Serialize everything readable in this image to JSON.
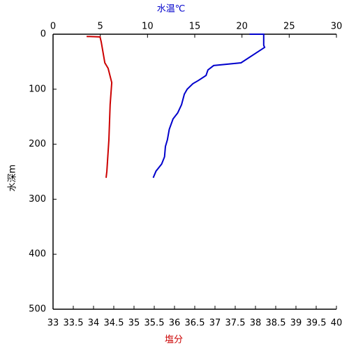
{
  "chart_data": {
    "type": "line",
    "x_label": "塩分",
    "x2_label": "水温℃",
    "y_label": "水深m",
    "xlim": [
      33,
      40
    ],
    "xticks": [
      33,
      33.5,
      34,
      34.5,
      35,
      35.5,
      36,
      36.5,
      37,
      37.5,
      38,
      38.5,
      39,
      39.5,
      40
    ],
    "x2lim": [
      0,
      30
    ],
    "x2ticks": [
      0,
      5,
      10,
      15,
      20,
      25,
      30
    ],
    "ylim": [
      0,
      500
    ],
    "yticks": [
      0,
      100,
      200,
      300,
      400,
      500
    ],
    "y_inverted": true,
    "x_label_color": "#cc0000",
    "x2_label_color": "#0000cc",
    "series": [
      {
        "axis": "x2",
        "color": "#0000cc",
        "x": [
          20.8,
          22.3,
          22.3,
          22.4,
          19.9,
          17.0,
          16.4,
          16.2,
          15.4,
          14.8,
          14.2,
          13.9,
          13.6,
          13.2,
          12.7,
          12.3,
          12.1,
          11.9,
          11.8,
          11.5,
          10.9,
          10.6
        ],
        "values": [
          0,
          0,
          20,
          24,
          52,
          57,
          65,
          75,
          84,
          90,
          100,
          109,
          128,
          143,
          154,
          173,
          192,
          204,
          223,
          236,
          249,
          261
        ]
      },
      {
        "axis": "x",
        "color": "#cc0000",
        "x": [
          33.83,
          34.16,
          34.19,
          34.28,
          34.36,
          34.45,
          34.41,
          34.38,
          34.33,
          34.31
        ],
        "values": [
          4,
          5,
          14,
          52,
          62,
          88,
          128,
          192,
          249,
          261
        ]
      }
    ]
  }
}
